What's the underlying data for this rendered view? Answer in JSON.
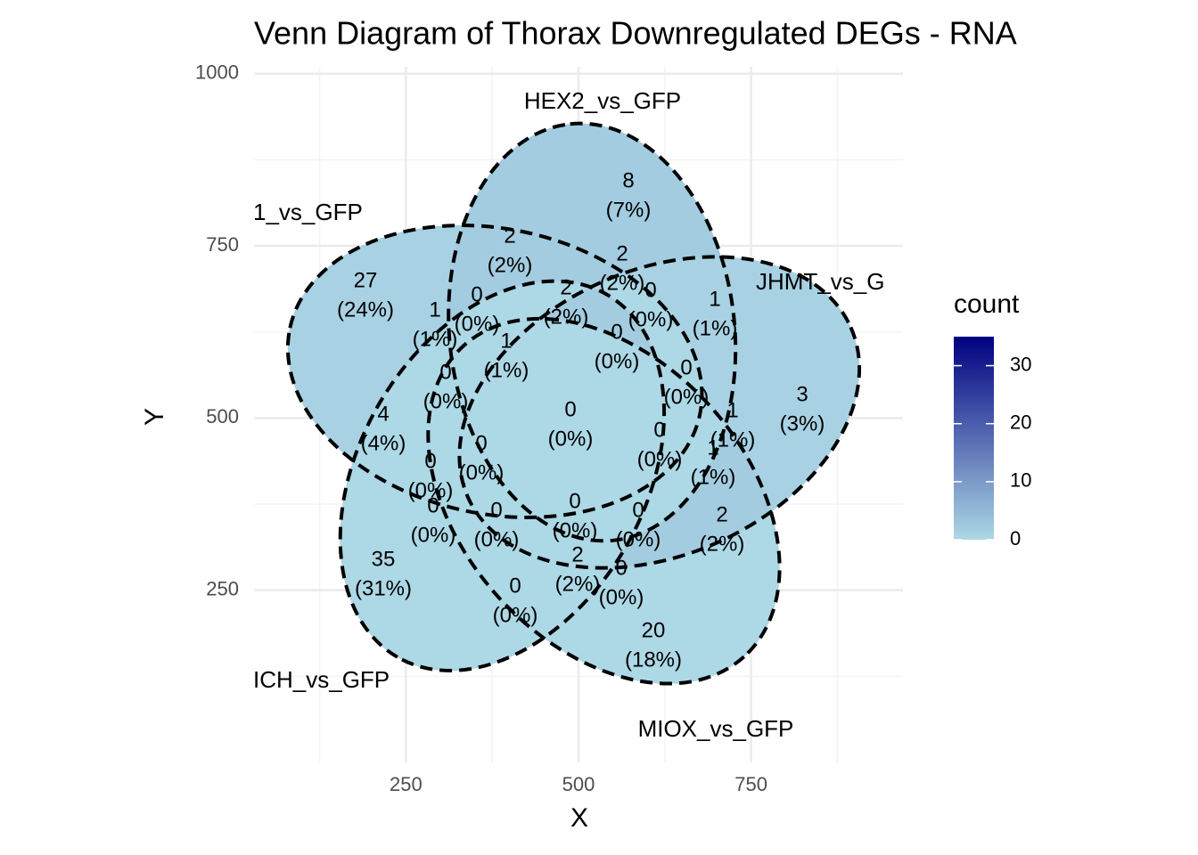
{
  "chart_data": {
    "type": "venn",
    "title": "Venn Diagram of Thorax Downregulated DEGs - RNA",
    "xlabel": "X",
    "ylabel": "Y",
    "set_labels": [
      "1_vs_GFP",
      "HEX2_vs_GFP",
      "JHMT_vs_G",
      "MIOX_vs_GFP",
      "ICH_vs_GFP"
    ],
    "values": [
      27,
      8,
      3,
      20,
      35,
      2,
      2,
      1,
      0,
      2,
      0,
      1,
      1,
      0,
      0,
      0,
      4,
      0,
      1,
      0,
      0,
      0,
      1,
      0,
      0,
      0,
      0,
      2,
      2,
      0,
      0
    ],
    "percent_labels": [
      "(24%)",
      "(7%)",
      "(3%)",
      "(18%)",
      "(31%)",
      "(2%)",
      "(2%)",
      "(1%)",
      "(0%)",
      "(2%)",
      "(0%)",
      "(1%)",
      "(1%)",
      "(0%)",
      "(0%)",
      "(0%)",
      "(4%)",
      "(0%)",
      "(1%)",
      "(0%)",
      "(0%)",
      "(0%)",
      "(1%)",
      "(0%)",
      "(0%)",
      "(0%)",
      "(0%)",
      "(2%)",
      "(2%)",
      "(0%)",
      "(0%)"
    ],
    "xlim": [
      30,
      970
    ],
    "xticks": [
      250,
      500,
      750
    ],
    "xminor": [
      125,
      375,
      625,
      875
    ],
    "ylim": [
      0,
      1010
    ],
    "yticks": [
      250,
      500,
      750,
      1000
    ],
    "yminor": [
      125,
      375,
      625,
      875
    ],
    "grid": true,
    "outline": "dashed",
    "legend_title": "count",
    "legend_ticks": [
      0,
      10,
      20,
      30
    ],
    "color_low": "#ADD8E6",
    "color_high": "#000080"
  }
}
